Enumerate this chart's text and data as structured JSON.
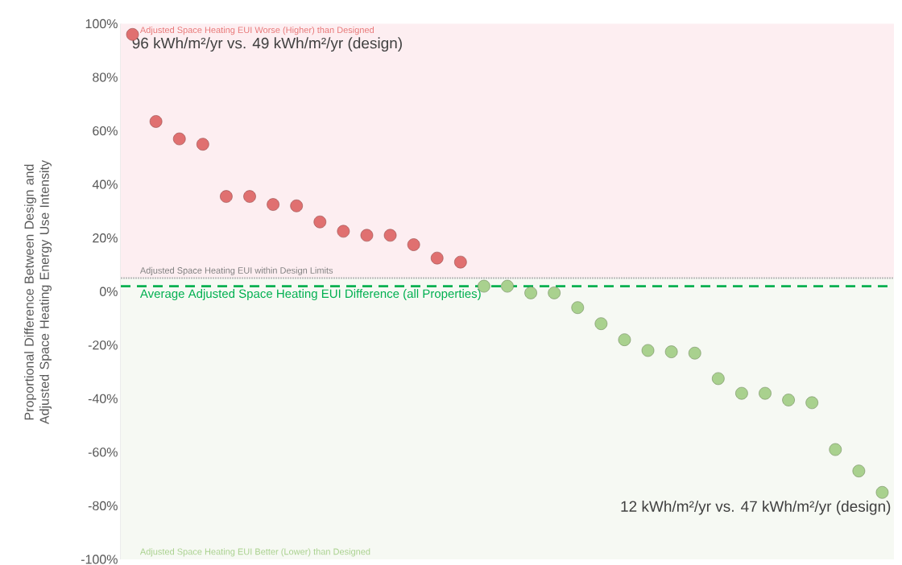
{
  "chart_data": {
    "type": "scatter",
    "ylabel": "Proportional Difference Between Design and Adjusted Space Heating Energy Use Intensity",
    "categories": [
      null,
      null,
      null,
      null,
      null,
      null,
      null,
      null,
      null,
      null,
      null,
      null,
      null,
      null,
      null,
      null,
      null,
      null,
      null,
      null,
      null,
      null,
      null,
      null,
      null,
      null,
      null,
      null,
      null,
      null,
      null,
      null,
      null
    ],
    "values": [
      96,
      63.5,
      57,
      55,
      35.5,
      35.5,
      32.5,
      32,
      26,
      22.5,
      21,
      21,
      17.5,
      12.5,
      11,
      2,
      2,
      -0.5,
      -0.5,
      -6,
      -12,
      -18,
      -22,
      -22.5,
      -23,
      -32.5,
      -38,
      -38,
      -40.5,
      -41.5,
      -59,
      -67,
      -75
    ],
    "colors": [
      "#e07070",
      "#e07070",
      "#e07070",
      "#e07070",
      "#e07070",
      "#e07070",
      "#e07070",
      "#e07070",
      "#e07070",
      "#e07070",
      "#e07070",
      "#e07070",
      "#e07070",
      "#e07070",
      "#e07070",
      "#a9d18e",
      "#a9d18e",
      "#a9d18e",
      "#a9d18e",
      "#a9d18e",
      "#a9d18e",
      "#a9d18e",
      "#a9d18e",
      "#a9d18e",
      "#a9d18e",
      "#a9d18e",
      "#a9d18e",
      "#a9d18e",
      "#a9d18e",
      "#a9d18e",
      "#a9d18e",
      "#a9d18e",
      "#a9d18e"
    ],
    "marker": "circle",
    "ylim": [
      -100,
      100
    ],
    "yticks": [
      {
        "value": -100,
        "label": "-100%"
      },
      {
        "value": -80,
        "label": "-80%"
      },
      {
        "value": -60,
        "label": "-60%"
      },
      {
        "value": -40,
        "label": "-40%"
      },
      {
        "value": -20,
        "label": "-20%"
      },
      {
        "value": 0,
        "label": "0%"
      },
      {
        "value": 20,
        "label": "20%"
      },
      {
        "value": 40,
        "label": "40%"
      },
      {
        "value": 60,
        "label": "60%"
      },
      {
        "value": 80,
        "label": "80%"
      },
      {
        "value": 100,
        "label": "100%"
      }
    ],
    "tick_labels": "y",
    "bands": [
      {
        "axis": "y",
        "from": 5,
        "to": 100,
        "label": "Adjusted Space Heating EUI Worse (Higher) than Designed",
        "color": "#fdeef1"
      },
      {
        "axis": "y",
        "from": -100,
        "to": 5,
        "label": "Adjusted Space Heating EUI Better (Lower) than Designed",
        "color": "#f6f9f3"
      }
    ],
    "ref_lines": [
      {
        "axis": "y",
        "value": 5,
        "label": "Adjusted Space Heating EUI within Design Limits",
        "color": "#b8b8b8",
        "line_style": "dotted"
      },
      {
        "axis": "y",
        "value": 2,
        "label": "Average Adjusted Space Heating EUI Difference (all Properties)",
        "color": "#00b050",
        "line_style": "dashed"
      }
    ],
    "annotations": [
      "96 kWh/m²/yr vs. 49 kWh/m²/yr (design)",
      "12 kWh/m²/yr vs. 47 kWh/m²/yr (design)"
    ]
  }
}
